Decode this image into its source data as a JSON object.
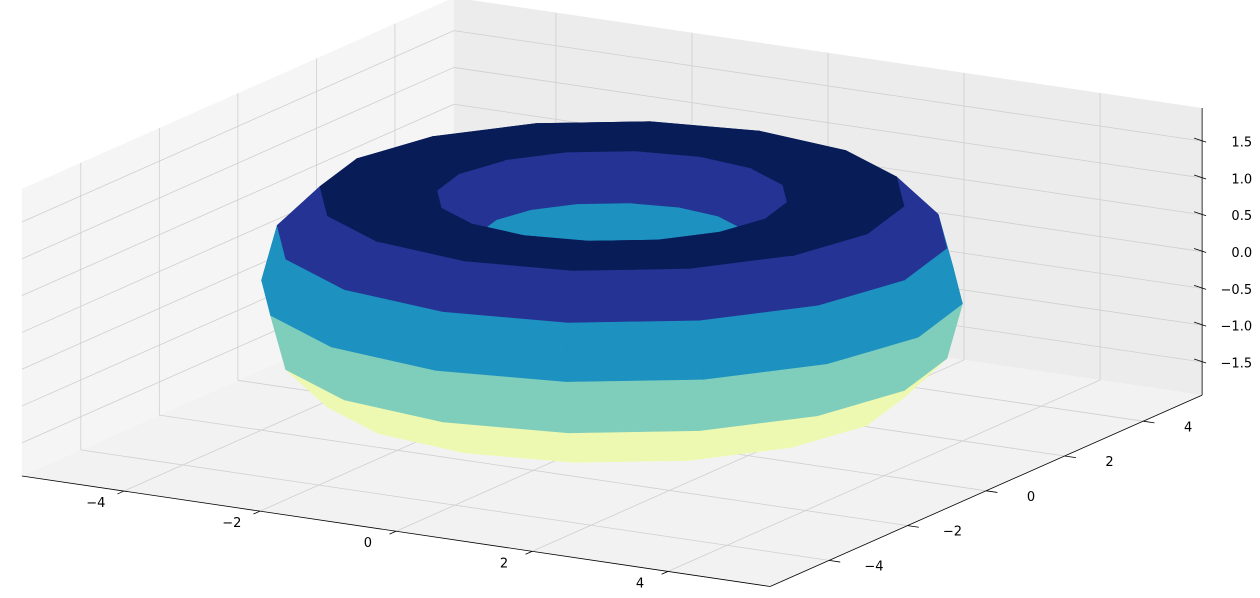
{
  "chart_data": {
    "type": "surface3d",
    "surface": {
      "shape": "torus",
      "major_radius": 3,
      "minor_radius": 1.5
    },
    "colormap": [
      "#ffffd9",
      "#edf8b1",
      "#c7e9b4",
      "#7fcdbb",
      "#41b6c4",
      "#1d91c0",
      "#225ea8",
      "#253494",
      "#081d58"
    ],
    "view": {
      "elevation": 30,
      "azimuth": -60
    },
    "xlim": [
      -5.5,
      5.5
    ],
    "ylim": [
      -5.5,
      5.5
    ],
    "zlim": [
      -1.95,
      1.95
    ],
    "xticks": [
      {
        "value": -4,
        "label": "−4"
      },
      {
        "value": -2,
        "label": "−2"
      },
      0,
      2,
      4
    ],
    "yticks": [
      {
        "value": -4,
        "label": "−4"
      },
      {
        "value": -2,
        "label": "−2"
      },
      0,
      2,
      4
    ],
    "zticks": [
      {
        "value": -1.5,
        "label": "−1.5"
      },
      {
        "value": -1,
        "label": "−1.0"
      },
      {
        "value": -0.5,
        "label": "−0.5"
      },
      {
        "value": 0,
        "label": "0.0"
      },
      0.5,
      {
        "value": 1,
        "label": "1.0"
      },
      1.5
    ],
    "grid": true
  }
}
